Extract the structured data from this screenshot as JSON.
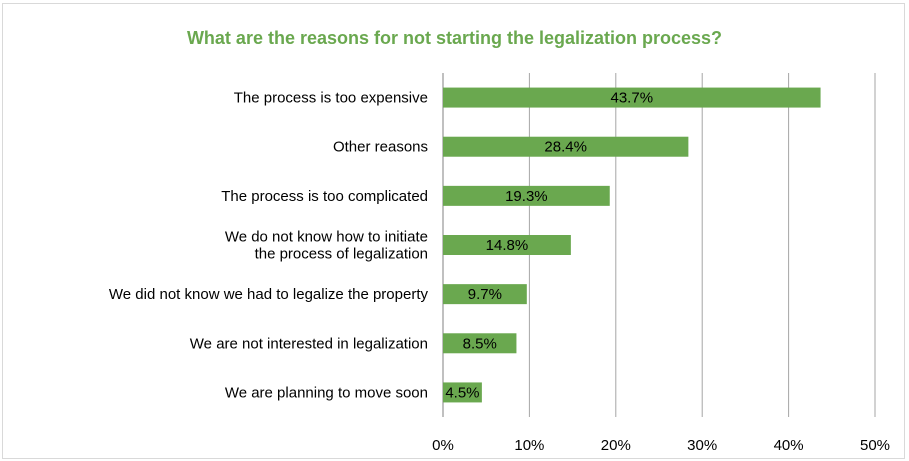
{
  "chart_data": {
    "type": "bar",
    "orientation": "horizontal",
    "title": "What are the reasons for not starting the legalization process?",
    "categories": [
      "The process is too expensive",
      "Other reasons",
      "The process is too complicated",
      "We do not know how to initiate\nthe process of legalization",
      "We did not know we had to legalize the property",
      "We are not interested in legalization",
      "We are planning to move soon"
    ],
    "values": [
      43.7,
      28.4,
      19.3,
      14.8,
      9.7,
      8.5,
      4.5
    ],
    "data_labels": [
      "43.7%",
      "28.4%",
      "19.3%",
      "14.8%",
      "9.7%",
      "8.5%",
      "4.5%"
    ],
    "xlim": [
      0,
      50
    ],
    "xticks": [
      "0%",
      "10%",
      "20%",
      "30%",
      "40%",
      "50%"
    ],
    "grid": "vertical",
    "bar_color": "#6aa84f",
    "title_color": "#6aa84f"
  }
}
